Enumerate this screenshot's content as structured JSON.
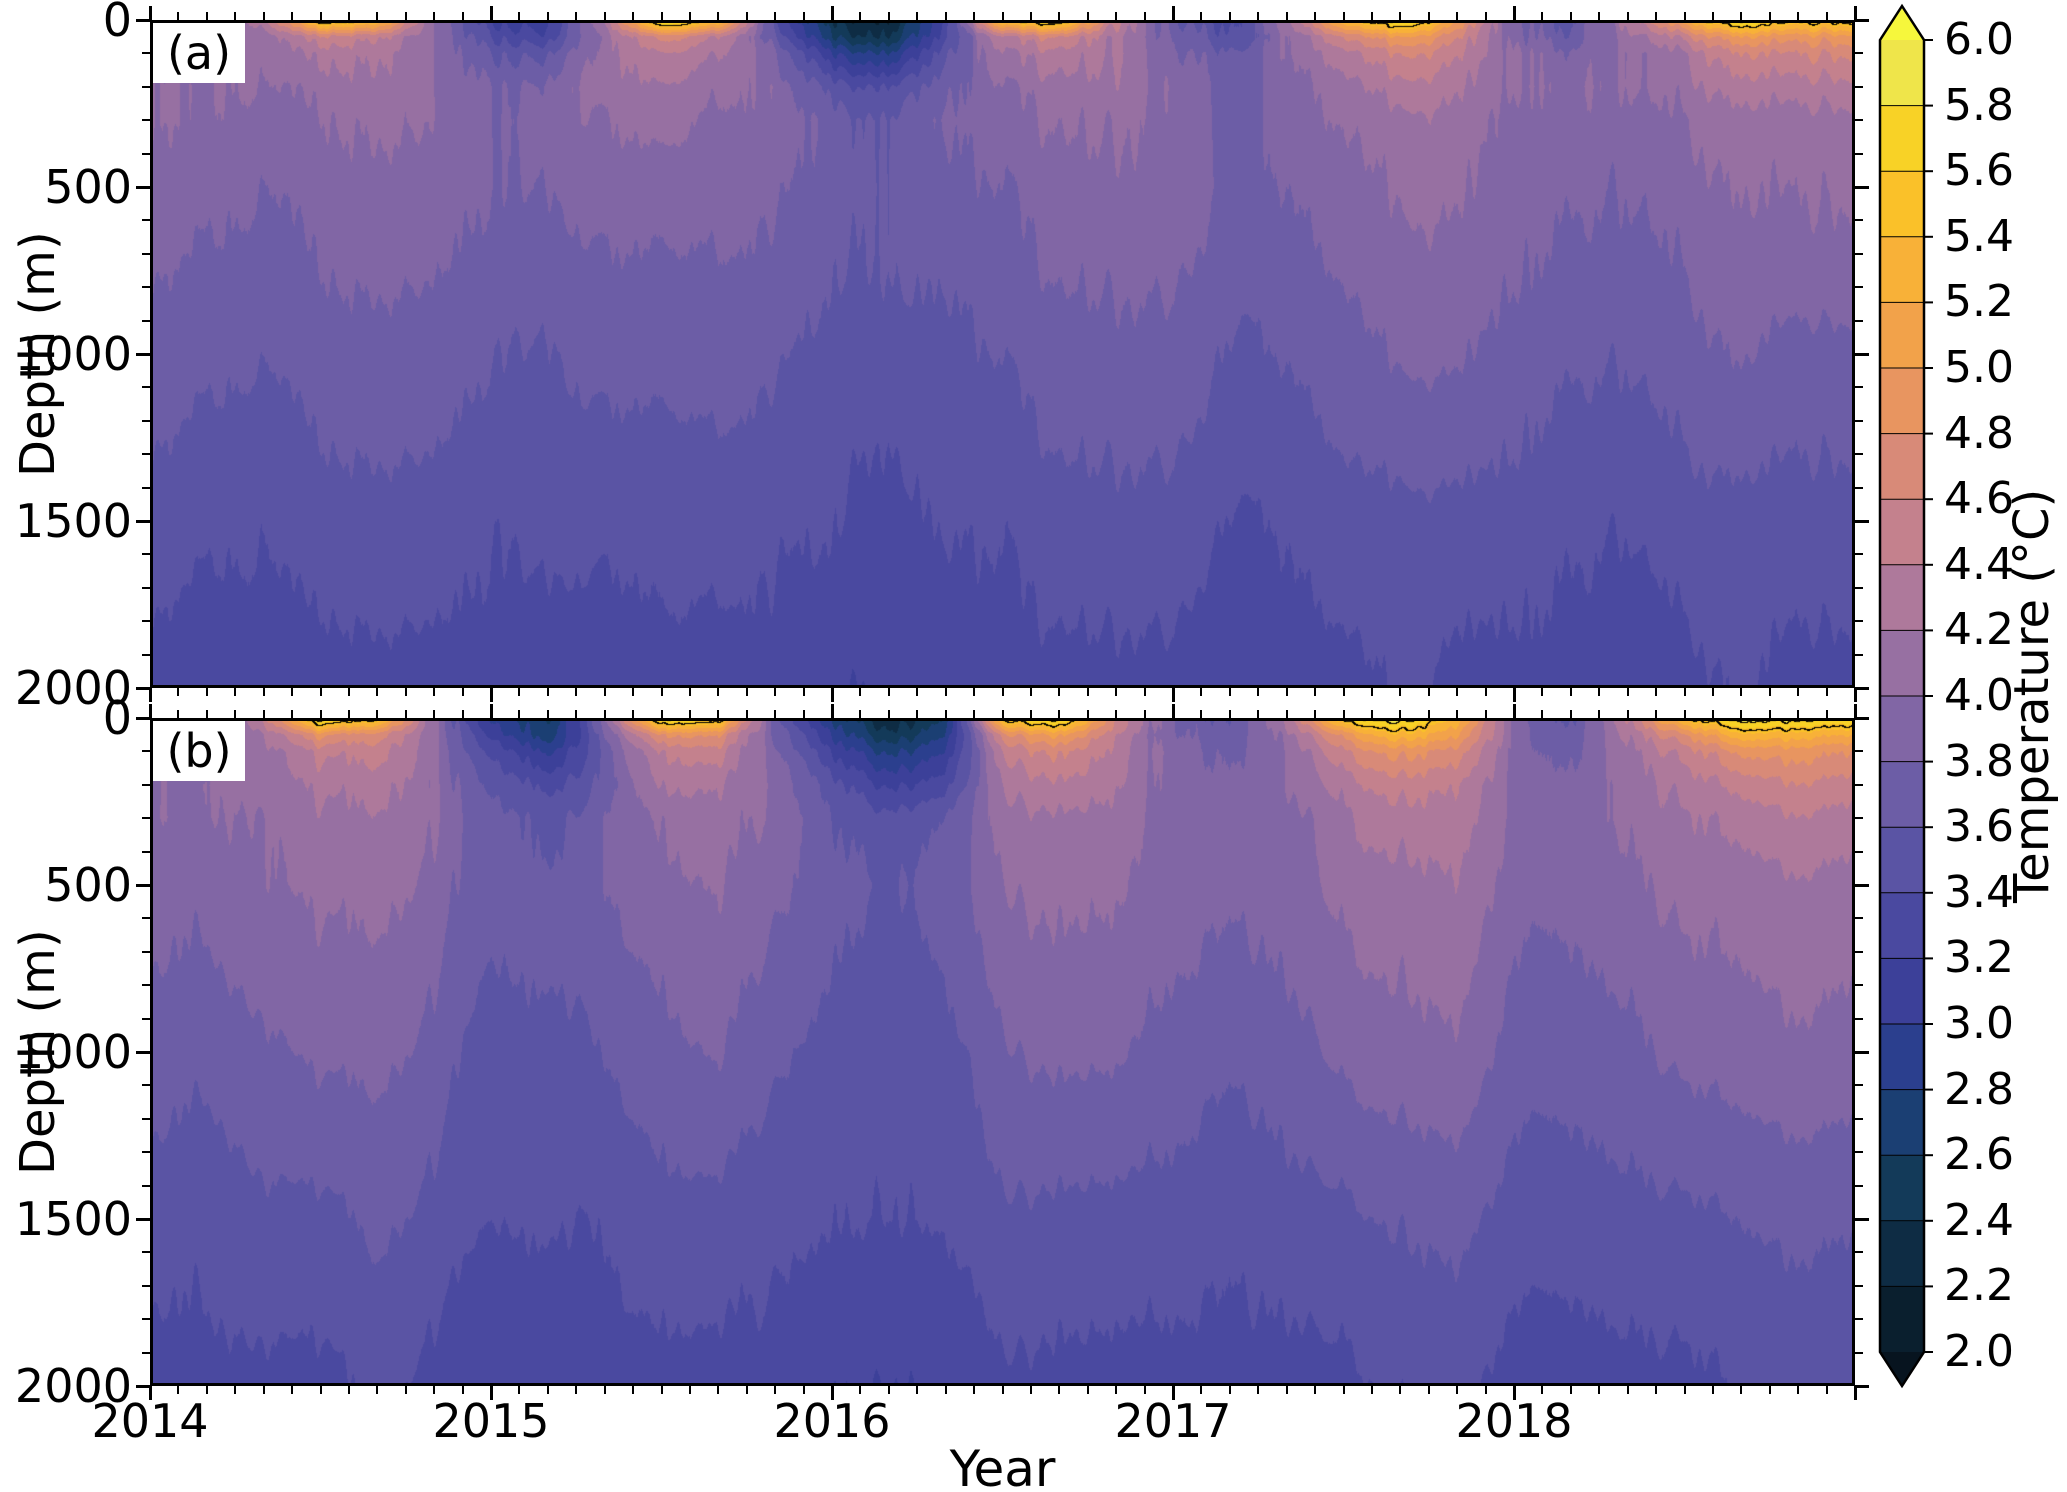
{
  "chart_data": {
    "type": "heatmap",
    "xlabel": "Year",
    "ylabel": "Depth (m)",
    "x_range": [
      2014,
      2019
    ],
    "x_ticks": [
      "2014",
      "2015",
      "2016",
      "2017",
      "2018"
    ],
    "x_minor_per_year": 12,
    "y_range": [
      0,
      2000
    ],
    "y_ticks": [
      "0",
      "500",
      "1000",
      "1500",
      "2000"
    ],
    "y_minor_step": 100,
    "time": [
      2014.0,
      2014.167,
      2014.333,
      2014.5,
      2014.667,
      2014.833,
      2015.0,
      2015.167,
      2015.333,
      2015.5,
      2015.667,
      2015.833,
      2016.0,
      2016.167,
      2016.333,
      2016.5,
      2016.667,
      2016.833,
      2017.0,
      2017.167,
      2017.333,
      2017.5,
      2017.667,
      2017.833,
      2018.0,
      2018.167,
      2018.333,
      2018.5,
      2018.667,
      2018.833
    ],
    "depths": [
      0,
      50,
      100,
      200,
      300,
      500,
      750,
      1000,
      1500,
      2000
    ],
    "panels": [
      {
        "label": "(a)",
        "temperature": [
          [
            3.8,
            3.4,
            4.4,
            5.8,
            5.4,
            4.0,
            3.2,
            2.9,
            4.2,
            5.9,
            5.6,
            3.4,
            2.4,
            2.2,
            3.2,
            5.6,
            5.8,
            4.4,
            3.6,
            3.4,
            4.2,
            5.4,
            5.9,
            5.0,
            3.8,
            3.5,
            4.3,
            5.2,
            5.9,
            5.6
          ],
          [
            3.9,
            3.6,
            4.1,
            4.6,
            4.4,
            4.0,
            3.4,
            3.1,
            4.0,
            4.6,
            4.5,
            3.6,
            2.6,
            2.4,
            3.3,
            4.4,
            4.6,
            4.2,
            3.7,
            3.5,
            4.0,
            4.6,
            5.0,
            4.6,
            3.9,
            3.6,
            4.1,
            4.5,
            5.0,
            4.9
          ],
          [
            4.0,
            3.8,
            4.1,
            4.3,
            4.2,
            4.0,
            3.6,
            3.4,
            4.0,
            4.3,
            4.3,
            3.8,
            3.0,
            2.8,
            3.5,
            4.2,
            4.3,
            4.2,
            3.8,
            3.7,
            4.0,
            4.3,
            4.6,
            4.4,
            4.0,
            3.8,
            4.0,
            4.2,
            4.6,
            4.6
          ],
          [
            4.0,
            3.9,
            4.0,
            4.1,
            4.1,
            4.0,
            3.8,
            3.7,
            4.0,
            4.1,
            4.1,
            3.9,
            3.5,
            3.4,
            3.7,
            4.0,
            4.1,
            4.1,
            3.9,
            3.8,
            3.9,
            4.1,
            4.3,
            4.2,
            4.0,
            3.9,
            4.0,
            4.1,
            4.3,
            4.3
          ],
          [
            4.0,
            3.9,
            3.9,
            4.0,
            4.0,
            4.0,
            3.8,
            3.8,
            3.9,
            4.0,
            4.0,
            3.9,
            3.7,
            3.6,
            3.8,
            3.9,
            4.0,
            4.0,
            3.9,
            3.8,
            3.9,
            4.0,
            4.1,
            4.1,
            3.9,
            3.9,
            3.9,
            4.0,
            4.1,
            4.1
          ],
          [
            3.9,
            3.8,
            3.8,
            3.9,
            3.9,
            3.9,
            3.8,
            3.7,
            3.8,
            3.8,
            3.9,
            3.8,
            3.7,
            3.6,
            3.7,
            3.8,
            3.9,
            3.9,
            3.9,
            3.8,
            3.8,
            3.9,
            4.0,
            4.0,
            3.9,
            3.8,
            3.8,
            3.9,
            4.0,
            4.0
          ],
          [
            3.8,
            3.7,
            3.7,
            3.8,
            3.8,
            3.8,
            3.7,
            3.6,
            3.7,
            3.7,
            3.8,
            3.7,
            3.6,
            3.6,
            3.6,
            3.7,
            3.8,
            3.8,
            3.8,
            3.7,
            3.7,
            3.8,
            3.9,
            3.9,
            3.8,
            3.7,
            3.7,
            3.8,
            3.9,
            3.9
          ],
          [
            3.7,
            3.6,
            3.6,
            3.7,
            3.7,
            3.7,
            3.6,
            3.5,
            3.6,
            3.6,
            3.7,
            3.6,
            3.5,
            3.5,
            3.5,
            3.6,
            3.7,
            3.7,
            3.7,
            3.6,
            3.6,
            3.7,
            3.8,
            3.8,
            3.7,
            3.6,
            3.6,
            3.7,
            3.8,
            3.7
          ],
          [
            3.5,
            3.4,
            3.4,
            3.5,
            3.5,
            3.5,
            3.4,
            3.4,
            3.4,
            3.4,
            3.5,
            3.4,
            3.4,
            3.3,
            3.4,
            3.4,
            3.5,
            3.5,
            3.5,
            3.4,
            3.4,
            3.5,
            3.5,
            3.5,
            3.5,
            3.4,
            3.4,
            3.5,
            3.5,
            3.5
          ],
          [
            3.3,
            3.2,
            3.3,
            3.3,
            3.3,
            3.3,
            3.3,
            3.2,
            3.2,
            3.3,
            3.3,
            3.3,
            3.2,
            3.2,
            3.2,
            3.3,
            3.3,
            3.3,
            3.3,
            3.2,
            3.3,
            3.3,
            3.4,
            3.3,
            3.3,
            3.3,
            3.2,
            3.3,
            3.4,
            3.3
          ]
        ]
      },
      {
        "label": "(b)",
        "temperature": [
          [
            3.8,
            3.4,
            4.4,
            5.9,
            5.5,
            4.0,
            3.0,
            2.5,
            4.0,
            5.9,
            5.7,
            3.6,
            2.8,
            2.3,
            2.6,
            5.5,
            5.9,
            4.6,
            3.8,
            3.5,
            4.3,
            5.6,
            6.0,
            5.2,
            4.0,
            3.6,
            4.4,
            5.4,
            6.0,
            5.8
          ],
          [
            3.9,
            3.6,
            4.1,
            4.8,
            4.6,
            4.0,
            3.2,
            2.6,
            3.8,
            4.8,
            4.8,
            3.7,
            3.0,
            2.5,
            2.8,
            4.6,
            5.0,
            4.4,
            3.8,
            3.6,
            4.1,
            4.8,
            5.4,
            4.9,
            4.0,
            3.7,
            4.2,
            4.7,
            5.4,
            5.2
          ],
          [
            4.0,
            3.8,
            4.0,
            4.4,
            4.4,
            4.0,
            3.4,
            2.9,
            3.7,
            4.4,
            4.5,
            3.8,
            3.2,
            2.8,
            3.0,
            4.3,
            4.6,
            4.3,
            3.9,
            3.7,
            4.0,
            4.5,
            4.9,
            4.6,
            4.0,
            3.8,
            4.1,
            4.4,
            4.9,
            4.8
          ],
          [
            4.0,
            3.9,
            4.0,
            4.2,
            4.2,
            4.0,
            3.6,
            3.3,
            3.7,
            4.2,
            4.2,
            3.9,
            3.5,
            3.2,
            3.3,
            4.1,
            4.3,
            4.2,
            3.9,
            3.8,
            4.0,
            4.2,
            4.5,
            4.3,
            4.0,
            3.9,
            4.0,
            4.2,
            4.5,
            4.5
          ],
          [
            4.0,
            3.9,
            3.9,
            4.1,
            4.1,
            4.0,
            3.7,
            3.5,
            3.8,
            4.0,
            4.1,
            3.9,
            3.6,
            3.5,
            3.6,
            4.0,
            4.1,
            4.1,
            3.9,
            3.8,
            3.9,
            4.1,
            4.3,
            4.2,
            4.0,
            3.9,
            4.0,
            4.1,
            4.3,
            4.3
          ],
          [
            3.9,
            3.8,
            3.9,
            4.0,
            4.0,
            3.9,
            3.7,
            3.6,
            3.8,
            3.9,
            4.0,
            3.8,
            3.7,
            3.6,
            3.7,
            3.9,
            4.0,
            4.0,
            3.9,
            3.8,
            3.9,
            4.0,
            4.1,
            4.1,
            3.9,
            3.9,
            3.9,
            4.0,
            4.1,
            4.1
          ],
          [
            3.8,
            3.7,
            3.8,
            3.9,
            3.9,
            3.8,
            3.6,
            3.6,
            3.7,
            3.8,
            3.9,
            3.7,
            3.6,
            3.5,
            3.6,
            3.8,
            3.9,
            3.9,
            3.8,
            3.7,
            3.8,
            3.9,
            4.0,
            4.0,
            3.8,
            3.8,
            3.8,
            3.9,
            4.0,
            4.0
          ],
          [
            3.7,
            3.6,
            3.7,
            3.8,
            3.8,
            3.7,
            3.5,
            3.5,
            3.6,
            3.7,
            3.8,
            3.6,
            3.5,
            3.5,
            3.5,
            3.7,
            3.8,
            3.8,
            3.7,
            3.6,
            3.7,
            3.8,
            3.9,
            3.9,
            3.7,
            3.7,
            3.7,
            3.8,
            3.9,
            3.9
          ],
          [
            3.5,
            3.4,
            3.5,
            3.5,
            3.6,
            3.5,
            3.4,
            3.4,
            3.4,
            3.5,
            3.5,
            3.4,
            3.4,
            3.4,
            3.4,
            3.5,
            3.5,
            3.5,
            3.5,
            3.4,
            3.5,
            3.5,
            3.6,
            3.6,
            3.5,
            3.5,
            3.5,
            3.5,
            3.6,
            3.6
          ],
          [
            3.3,
            3.3,
            3.3,
            3.3,
            3.4,
            3.3,
            3.2,
            3.2,
            3.3,
            3.3,
            3.3,
            3.3,
            3.2,
            3.2,
            3.2,
            3.3,
            3.3,
            3.3,
            3.3,
            3.3,
            3.3,
            3.3,
            3.4,
            3.4,
            3.3,
            3.3,
            3.3,
            3.3,
            3.4,
            3.4
          ]
        ]
      }
    ],
    "black_contour_levels": [
      5.5,
      5.8
    ],
    "colorbar": {
      "label": "Temperature (°C)",
      "min": 2.0,
      "max": 6.0,
      "step": 0.2,
      "tick_labels": [
        "2.0",
        "2.2",
        "2.4",
        "2.6",
        "2.8",
        "3.0",
        "3.2",
        "3.4",
        "3.6",
        "3.8",
        "4.0",
        "4.2",
        "4.4",
        "4.6",
        "4.8",
        "5.0",
        "5.2",
        "5.4",
        "5.6",
        "5.8",
        "6.0"
      ],
      "colors": [
        "#0a1f2e",
        "#0e2c44",
        "#133a59",
        "#1b3f73",
        "#2b3f8e",
        "#3c4099",
        "#4a49a0",
        "#5a54a4",
        "#6c5da6",
        "#8166a5",
        "#9770a2",
        "#ae799b",
        "#c4818d",
        "#d88a78",
        "#e89560",
        "#f2a24a",
        "#f8b138",
        "#fac129",
        "#f8d226",
        "#efe54a"
      ],
      "under_color": "#07141f",
      "over_color": "#f6f73c"
    }
  }
}
